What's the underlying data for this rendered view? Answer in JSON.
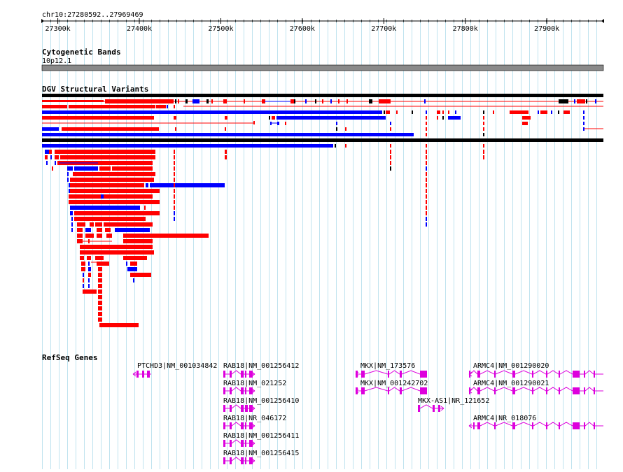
{
  "browser": {
    "position": "chr10:27280592..27969469",
    "ruler_ticks": [
      "27300k",
      "27400k",
      "27500k",
      "27600k",
      "27700k",
      "27800k",
      "27900k"
    ],
    "ruler_kb": [
      27300,
      27400,
      27500,
      27600,
      27700,
      27800,
      27900
    ],
    "range_kb": [
      27280.592,
      27969.469
    ]
  },
  "tracks": {
    "cytoband": {
      "title": "Cytogenetic Bands",
      "band_label": "10p12.1"
    },
    "dgv": {
      "title": "DGV Structural Variants",
      "colors": {
        "gain": "#0000ff",
        "loss": "#ff0000",
        "other": "#000000"
      }
    },
    "refseq": {
      "title": "RefSeq Genes",
      "color": "#dd00dd"
    }
  },
  "genes": [
    {
      "label": "PTCHD3|NM_001034842",
      "strand": "-"
    },
    {
      "label": "RAB18|NM_001256412",
      "strand": "+"
    },
    {
      "label": "RAB18|NM_021252",
      "strand": "+"
    },
    {
      "label": "RAB18|NM_001256410",
      "strand": "+"
    },
    {
      "label": "RAB18|NR_046172",
      "strand": "+"
    },
    {
      "label": "RAB18|NM_001256411",
      "strand": "+"
    },
    {
      "label": "RAB18|NM_001256415",
      "strand": "+"
    },
    {
      "label": "MKX|NM_173576",
      "strand": "-"
    },
    {
      "label": "MKX|NM_001242702",
      "strand": "-"
    },
    {
      "label": "MKX-AS1|NR_121652",
      "strand": "+"
    },
    {
      "label": "ARMC4|NM_001290020",
      "strand": "-"
    },
    {
      "label": "ARMC4|NM_001290021",
      "strand": "-"
    },
    {
      "label": "ARMC4|NR_018076",
      "strand": "-"
    }
  ]
}
